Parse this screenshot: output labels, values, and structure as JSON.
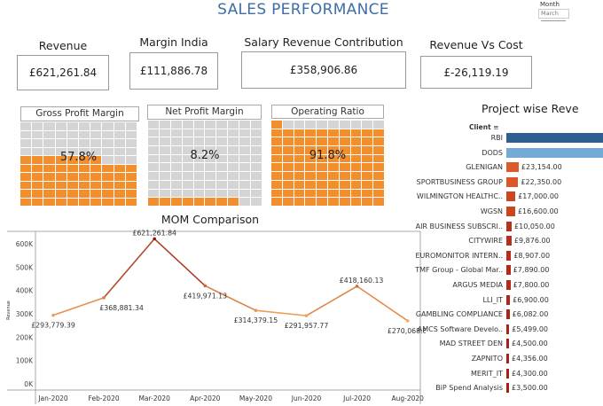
{
  "header": {
    "title": "SALES PERFORMANCE"
  },
  "filter": {
    "label": "Month",
    "value": "March"
  },
  "kpis": [
    {
      "label": "Revenue",
      "value": "£621,261.84"
    },
    {
      "label": "Margin India",
      "value": "£111,886.78"
    },
    {
      "label": "Salary Revenue Contribution",
      "value": "£358,906.86"
    },
    {
      "label": "Revenue Vs Cost",
      "value": "£-26,119.19"
    }
  ],
  "waffles": [
    {
      "title": "Gross Profit Margin",
      "value": "57.8%",
      "percent": 57.8
    },
    {
      "title": "Net Profit Margin",
      "value": "8.2%",
      "percent": 8.2
    },
    {
      "title": "Operating  Ratio",
      "value": "91.8%",
      "percent": 91.8
    }
  ],
  "colors": {
    "accent": "#f28e2b",
    "empty": "#d4d4d4",
    "title": "#3e6ea6",
    "rbi": "#2e5f8f",
    "dods": "#74abd6"
  },
  "chart_data": [
    {
      "type": "line",
      "title": "MOM Comparison",
      "ylabel": "Revenue",
      "categories": [
        "Jan-2020",
        "Feb-2020",
        "Mar-2020",
        "Apr-2020",
        "May-2020",
        "Jun-2020",
        "Jul-2020",
        "Aug-2020"
      ],
      "values": [
        293779.39,
        368881.34,
        621261.84,
        419971.13,
        314379.15,
        291957.77,
        418160.13,
        270068.89
      ],
      "labels": [
        "£293,779.39",
        "£368,881.34",
        "£621,261.84",
        "£419,971.13",
        "£314,379.15",
        "£291,957.77",
        "£418,160.13",
        "£270,068.89"
      ],
      "yticks": [
        "0K",
        "100K",
        "200K",
        "300K",
        "400K",
        "500K",
        "600K"
      ],
      "ylim": [
        0,
        650000
      ],
      "grid": false
    },
    {
      "type": "bar",
      "orientation": "horizontal",
      "title": "Project wise Reve",
      "header": "Client",
      "sort_icon": "sort-descending-icon",
      "categories": [
        "RBI",
        "DODS",
        "GLENIGAN",
        "SPORTBUSINESS GROUP",
        "WILMINGTON HEALTHC..",
        "WGSN",
        "AIR BUSINESS SUBSCRI..",
        "CITYWIRE",
        "EUROMONITOR INTERN..",
        "TMF Group - Global Mar..",
        "ARGUS MEDIA",
        "LLI_IT",
        "GAMBLING COMPLIANCE",
        "AMCS Software Develo..",
        "MAD STREET DEN",
        "ZAPNITO",
        "MERIT_IT",
        "BiP Spend Analysis"
      ],
      "values": [
        null,
        null,
        23154,
        22350,
        17000,
        16600,
        10050,
        9876,
        8907,
        7890,
        7800,
        6900,
        6082,
        5499,
        4500,
        4356,
        4300,
        3500
      ],
      "labels": [
        "",
        "",
        "£23,154.00",
        "£22,350.00",
        "£17,000.00",
        "£16,600.00",
        "£10,050.00",
        "£9,876.00",
        "£8,907.00",
        "£7,890.00",
        "£7,800.00",
        "£6,900.00",
        "£6,082.00",
        "£5,499.00",
        "£4,500.00",
        "£4,356.00",
        "£4,300.00",
        "£3,500.00"
      ]
    }
  ]
}
